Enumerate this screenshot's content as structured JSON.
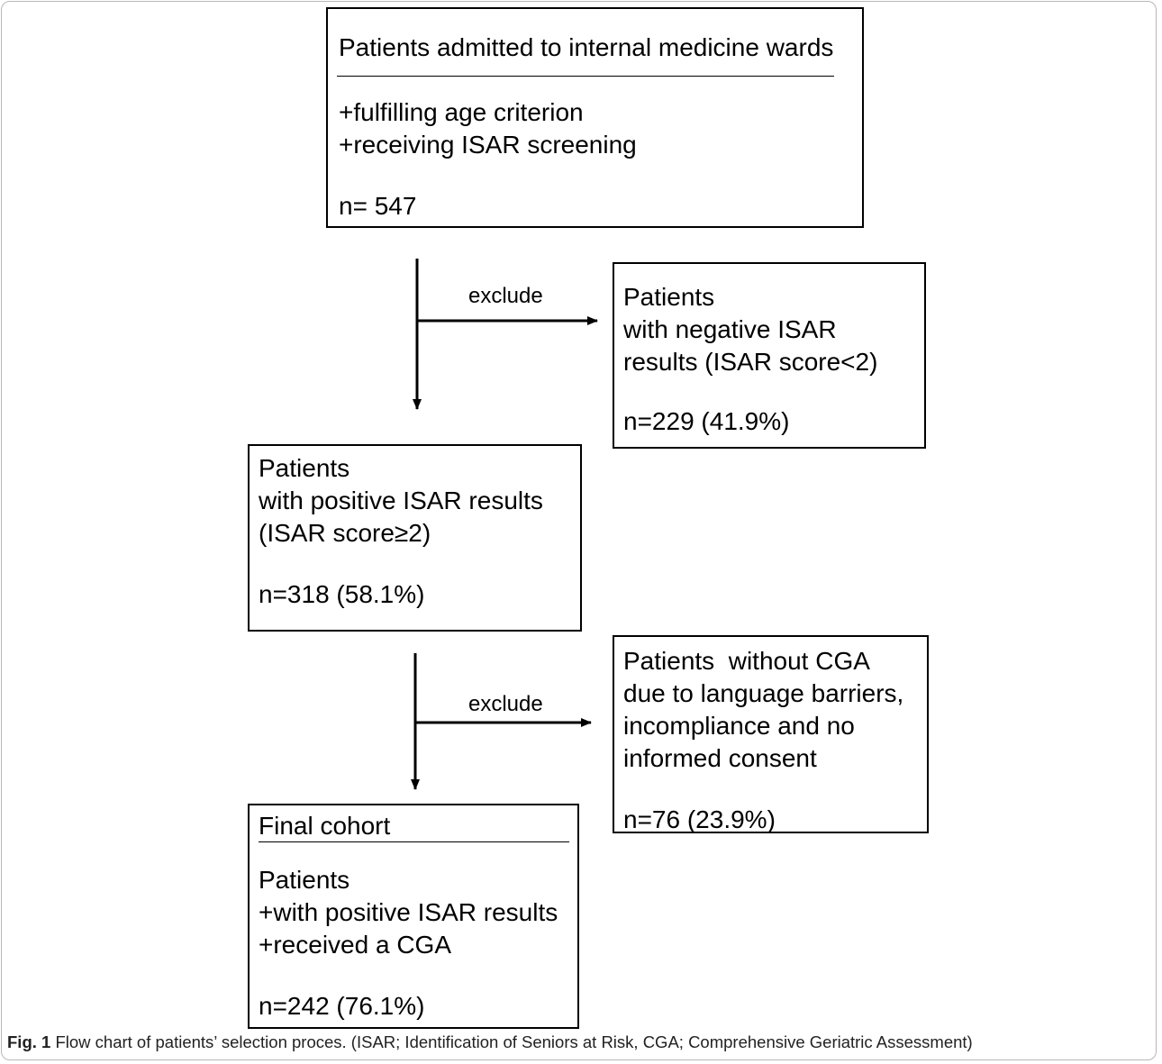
{
  "boxes": {
    "admitted": {
      "title": "Patients admitted to internal medicine wards",
      "line1": "+fulfilling age criterion",
      "line2": "+receiving ISAR screening",
      "count": "n= 547"
    },
    "negative": {
      "line1": "Patients",
      "line2": "with negative ISAR",
      "line3": "results (ISAR score<2)",
      "count": "n=229 (41.9%)"
    },
    "positive": {
      "line1": "Patients",
      "line2": "with positive ISAR results",
      "line3": "(ISAR score≥2)",
      "count": "n=318 (58.1%)"
    },
    "no_cga": {
      "line1": "Patients  without CGA",
      "line2": "due to language barriers,",
      "line3": "incompliance and no",
      "line4": "informed consent",
      "count": "n=76 (23.9%)"
    },
    "final": {
      "title": "Final cohort",
      "line1": "Patients",
      "line2": "+with positive ISAR results",
      "line3": "+received a CGA",
      "count": "n=242 (76.1%)"
    }
  },
  "connectors": {
    "exclude_1": "exclude",
    "exclude_2": "exclude"
  },
  "caption": {
    "label": "Fig. 1",
    "text": " Flow chart of patients’ selection proces. (ISAR; Identification of Seniors at Risk, CGA; Comprehensive Geriatric Assessment)"
  }
}
